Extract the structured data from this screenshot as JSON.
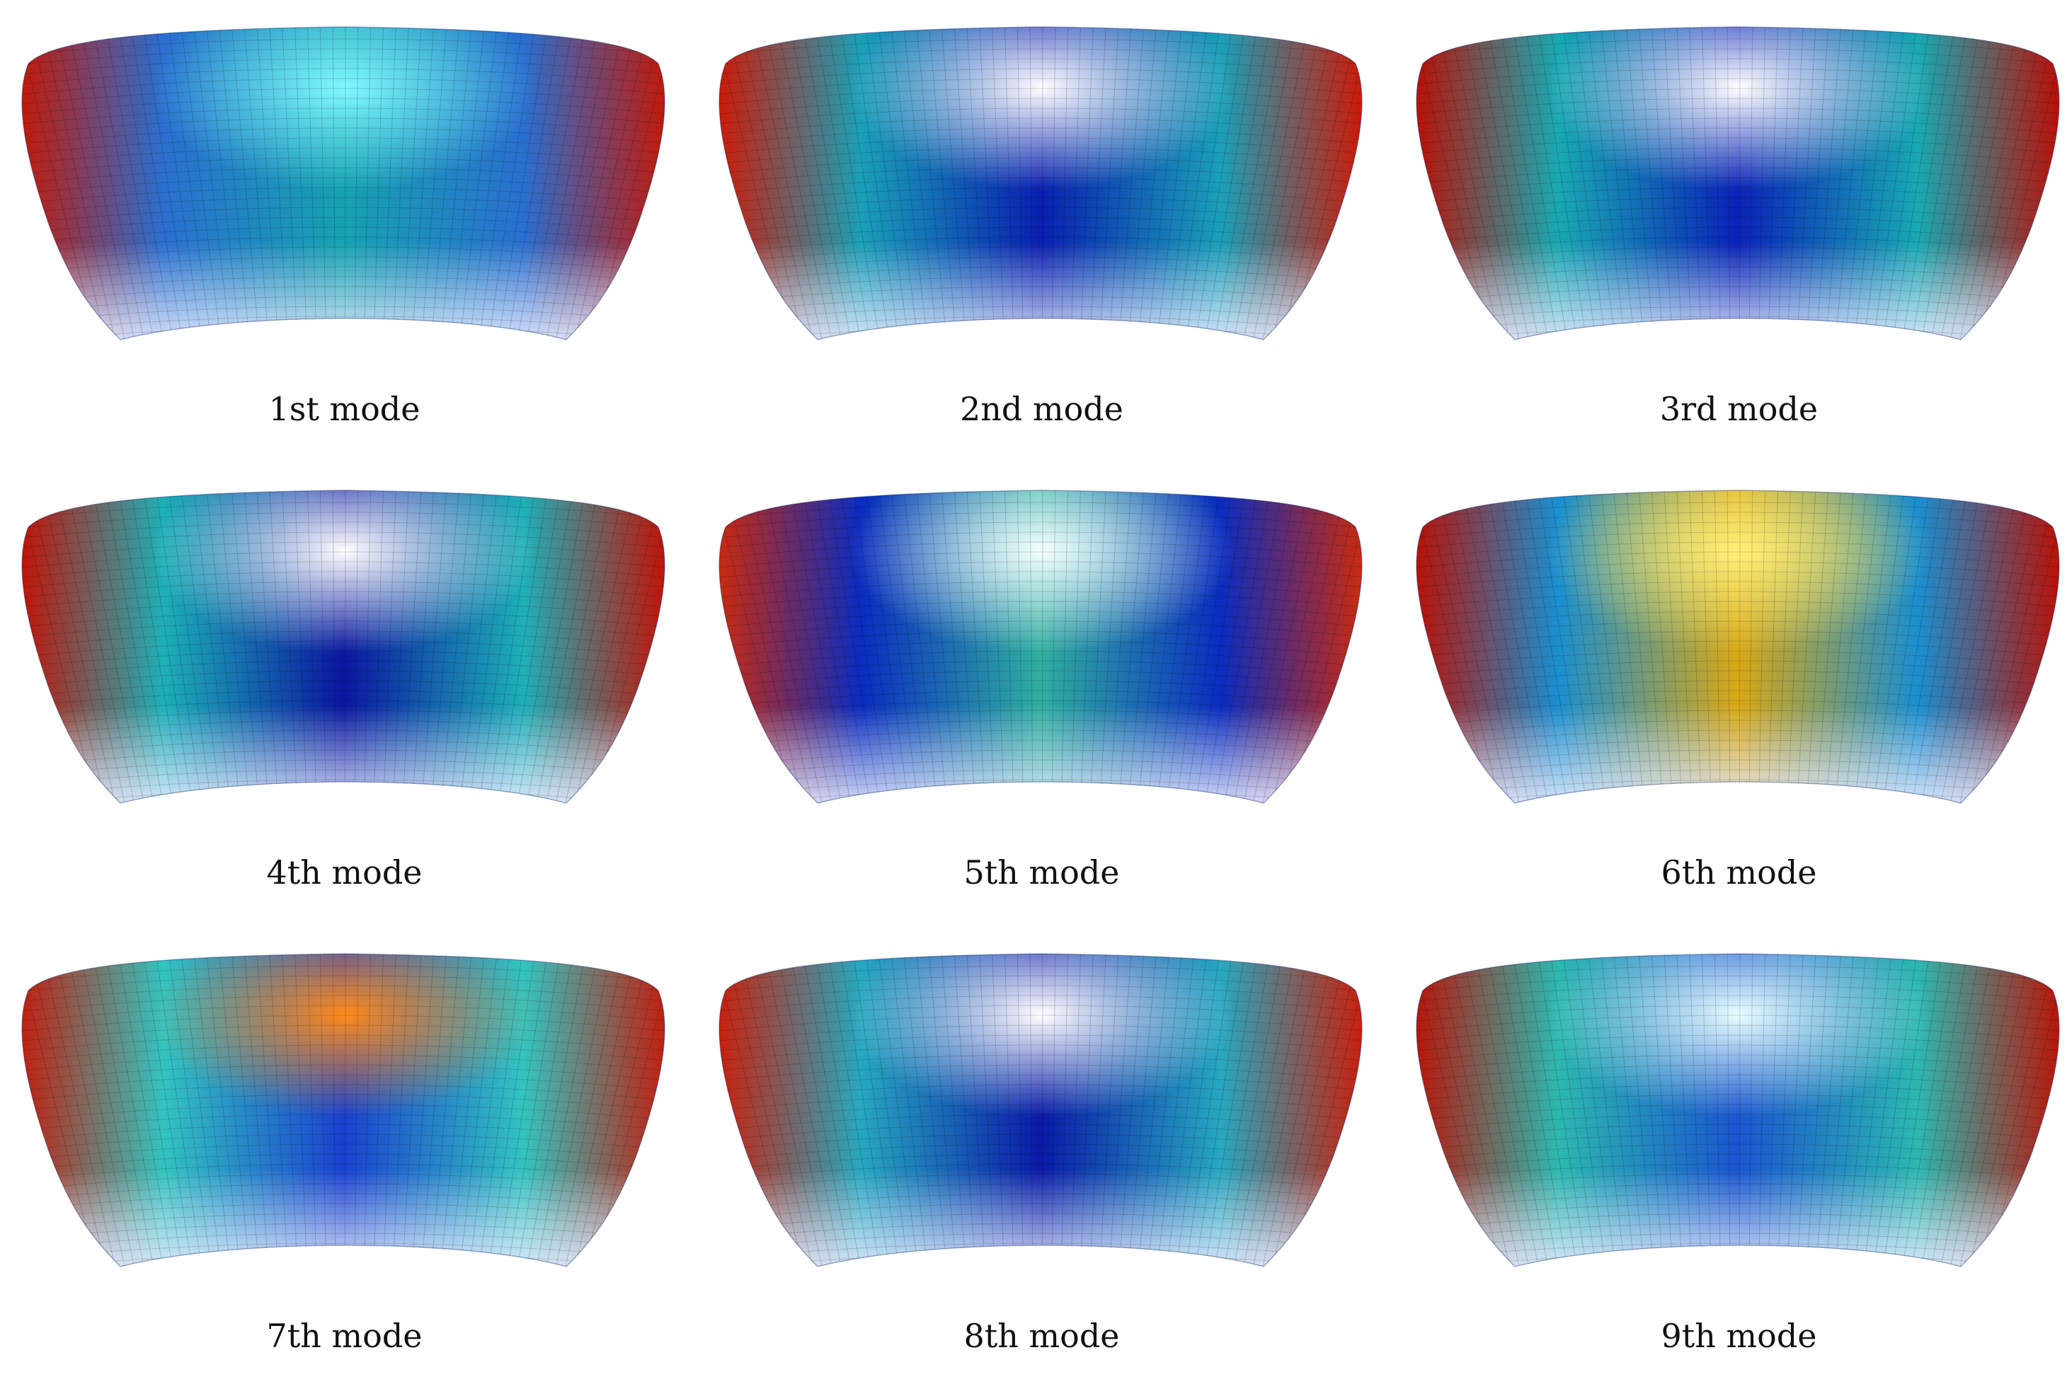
{
  "figure": {
    "panels": [
      {
        "caption": "1st mode",
        "colors": {
          "edges": "#c01a0a",
          "center": "#16a3b0",
          "hot": "#7ff7ff",
          "bottom": "#e6ecff",
          "shade": "#2a6fd0"
        }
      },
      {
        "caption": "2nd mode",
        "colors": {
          "edges": "#cc1a08",
          "center": "#0a1fb0",
          "hot": "#ffffff",
          "bottom": "#e6ecff",
          "shade": "#1aa0b8"
        }
      },
      {
        "caption": "3rd mode",
        "colors": {
          "edges": "#b81008",
          "center": "#0a22b8",
          "hot": "#ffffff",
          "bottom": "#e6ecff",
          "shade": "#19a9b3"
        }
      },
      {
        "caption": "4th mode",
        "colors": {
          "edges": "#c01408",
          "center": "#0a16a0",
          "hot": "#ffffff",
          "bottom": "#e6ecff",
          "shade": "#1eb0b8"
        }
      },
      {
        "caption": "5th mode",
        "colors": {
          "edges": "#c82a0e",
          "center": "#30b0a0",
          "hot": "#f4ffff",
          "bottom": "#e6ecff",
          "shade": "#0a2cc0"
        }
      },
      {
        "caption": "6th mode",
        "colors": {
          "edges": "#b81208",
          "center": "#d9a816",
          "hot": "#fff07a",
          "bottom": "#e6ecff",
          "shade": "#1a8fd0"
        }
      },
      {
        "caption": "7th mode",
        "colors": {
          "edges": "#c02010",
          "center": "#1a40d0",
          "hot": "#ff8c1a",
          "bottom": "#e6ecff",
          "shade": "#33c4c0"
        }
      },
      {
        "caption": "8th mode",
        "colors": {
          "edges": "#c8200c",
          "center": "#0a1aa8",
          "hot": "#ffffff",
          "bottom": "#e6ecff",
          "shade": "#27a8c0"
        }
      },
      {
        "caption": "9th mode",
        "colors": {
          "edges": "#b8160a",
          "center": "#1a55d0",
          "hot": "#e8ffff",
          "bottom": "#e6ecff",
          "shade": "#2cb8b0"
        }
      }
    ]
  }
}
